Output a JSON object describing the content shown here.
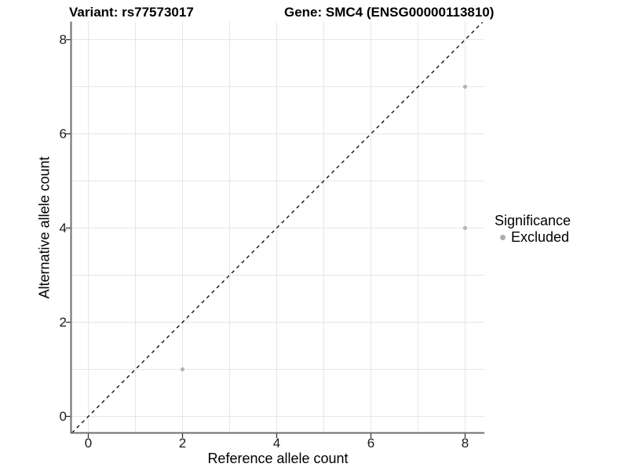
{
  "chart_data": {
    "type": "scatter",
    "title_left": "Variant: rs77573017",
    "title_right": "Gene: SMC4 (ENSG00000113810)",
    "xlabel": "Reference allele count",
    "ylabel": "Alternative allele count",
    "x_ticks": [
      0,
      2,
      4,
      6,
      8
    ],
    "y_ticks": [
      0,
      2,
      4,
      6,
      8
    ],
    "xlim": [
      -0.375,
      8.41
    ],
    "ylim": [
      -0.35,
      8.37
    ],
    "grid_interval": 1,
    "grid_on": true,
    "points": [
      {
        "x": 2,
        "y": 1,
        "significance": "Excluded"
      },
      {
        "x": 8,
        "y": 4,
        "significance": "Excluded"
      },
      {
        "x": 8,
        "y": 7,
        "significance": "Excluded"
      }
    ],
    "identity_line": {
      "slope": 1,
      "intercept": 0,
      "style": "dashed",
      "color": "#000000"
    },
    "legend": {
      "title": "Significance",
      "position": "right",
      "entries": [
        {
          "label": "Excluded",
          "color": "#adadad"
        }
      ]
    },
    "colors": {
      "point": "#b5b5b5",
      "grid": "#e6e6e6",
      "axis_line": "#6e6e6e",
      "tick_mark": "#333333"
    }
  }
}
